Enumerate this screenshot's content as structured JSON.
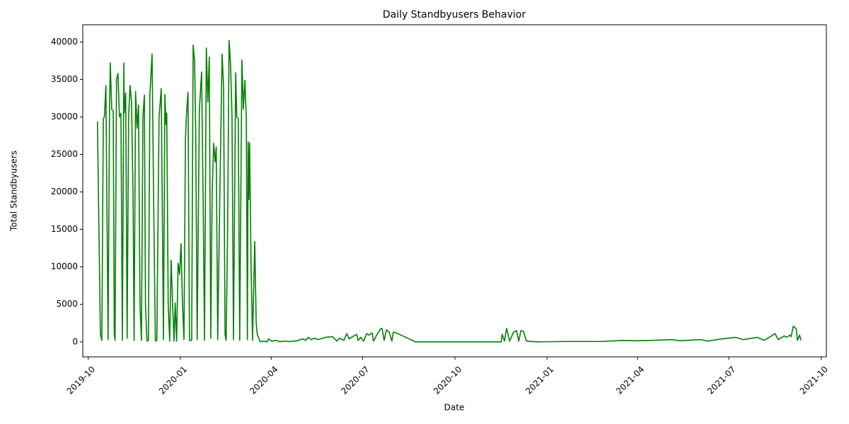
{
  "chart_data": {
    "type": "line",
    "title": "Daily Standbyusers Behavior",
    "x_label": "Date",
    "y_label": "Total Standbyusers",
    "x": [
      2019.774,
      2019.782,
      2019.786,
      2019.79,
      2019.793,
      2019.797,
      2019.803,
      2019.807,
      2019.809,
      2019.813,
      2019.817,
      2019.82,
      2019.822,
      2019.826,
      2019.83,
      2019.834,
      2019.838,
      2019.842,
      2019.846,
      2019.847,
      2019.851,
      2019.855,
      2019.859,
      2019.863,
      2019.867,
      2019.871,
      2019.874,
      2019.878,
      2019.882,
      2019.886,
      2019.89,
      2019.894,
      2019.898,
      2019.902,
      2019.905,
      2019.909,
      2019.913,
      2019.917,
      2019.923,
      2019.927,
      2019.932,
      2019.936,
      2019.942,
      2019.948,
      2019.954,
      2019.958,
      2019.961,
      2019.963,
      2019.967,
      2019.971,
      2019.975,
      2019.979,
      2019.983,
      2019.986,
      2019.99,
      2019.994,
      2019.998,
      2020.002,
      2020.006,
      2020.01,
      2020.014,
      2020.017,
      2020.021,
      2020.025,
      2020.031,
      2020.035,
      2020.039,
      2020.042,
      2020.046,
      2020.052,
      2020.058,
      2020.062,
      2020.066,
      2020.071,
      2020.075,
      2020.079,
      2020.083,
      2020.087,
      2020.091,
      2020.095,
      2020.098,
      2020.102,
      2020.108,
      2020.114,
      2020.118,
      2020.122,
      2020.125,
      2020.129,
      2020.133,
      2020.137,
      2020.141,
      2020.145,
      2020.151,
      2020.154,
      2020.158,
      2020.162,
      2020.168,
      2020.172,
      2020.176,
      2020.18,
      2020.183,
      2020.185,
      2020.187,
      2020.189,
      2020.193,
      2020.197,
      2020.203,
      2020.207,
      2020.21,
      2020.214,
      2020.218,
      2020.226,
      2020.237,
      2020.241,
      2020.249,
      2020.261,
      2020.272,
      2020.28,
      2020.299,
      2020.319,
      2020.334,
      2020.342,
      2020.349,
      2020.357,
      2020.367,
      2020.376,
      2020.396,
      2020.415,
      2020.427,
      2020.434,
      2020.446,
      2020.454,
      2020.461,
      2020.473,
      2020.481,
      2020.485,
      2020.492,
      2020.5,
      2020.508,
      2020.515,
      2020.523,
      2020.527,
      2020.539,
      2020.546,
      2020.55,
      2020.556,
      2020.562,
      2020.57,
      2020.577,
      2020.581,
      2020.589,
      2020.641,
      2020.875,
      2020.878,
      2020.884,
      2020.89,
      2020.898,
      2020.909,
      2020.917,
      2020.923,
      2020.929,
      2020.936,
      2020.944,
      2020.975,
      2021.052,
      2021.149,
      2021.207,
      2021.245,
      2021.284,
      2021.342,
      2021.361,
      2021.419,
      2021.438,
      2021.477,
      2021.515,
      2021.535,
      2021.573,
      2021.593,
      2021.622,
      2021.631,
      2021.647,
      2021.654,
      2021.662,
      2021.666,
      2021.672,
      2021.68,
      2021.683,
      2021.689,
      2021.693
    ],
    "series": [
      {
        "name": "Total Standbyusers",
        "color": "#008000",
        "values": [
          29400,
          1000,
          200,
          29800,
          30000,
          34200,
          300,
          31000,
          37200,
          31000,
          30800,
          1000,
          200,
          35000,
          35800,
          30000,
          30500,
          200,
          37200,
          30500,
          33200,
          500,
          30000,
          34200,
          32000,
          20000,
          200,
          33400,
          28500,
          31600,
          5000,
          200,
          30000,
          32900,
          5000,
          100,
          200,
          33000,
          38400,
          20000,
          100,
          200,
          30000,
          33800,
          300,
          33000,
          29000,
          30500,
          5000,
          100,
          10900,
          5000,
          100,
          5200,
          100,
          10500,
          9000,
          13100,
          5000,
          300,
          27000,
          30600,
          33300,
          200,
          200,
          39600,
          37500,
          28000,
          300,
          31000,
          36000,
          20000,
          200,
          39200,
          32000,
          38000,
          500,
          20000,
          26500,
          24000,
          26000,
          300,
          20000,
          38400,
          34000,
          1000,
          200,
          15000,
          40200,
          37000,
          30000,
          300,
          35900,
          30000,
          29800,
          200,
          37600,
          31000,
          34900,
          30000,
          300,
          26700,
          19000,
          26500,
          10000,
          200,
          13400,
          2500,
          1000,
          500,
          0,
          100,
          0,
          400,
          100,
          200,
          0,
          100,
          50,
          150,
          400,
          200,
          600,
          300,
          500,
          300,
          600,
          700,
          100,
          500,
          200,
          1100,
          400,
          800,
          1000,
          200,
          600,
          100,
          1100,
          900,
          1200,
          100,
          1200,
          1700,
          1800,
          200,
          1600,
          1300,
          100,
          1300,
          1200,
          0,
          0,
          1000,
          100,
          1800,
          100,
          1300,
          1500,
          100,
          1500,
          1400,
          100,
          0,
          50,
          50,
          200,
          150,
          200,
          300,
          150,
          300,
          100,
          400,
          600,
          300,
          600,
          200,
          1100,
          300,
          800,
          600,
          900,
          700,
          2100,
          1700,
          200,
          900,
          200
        ]
      }
    ],
    "xlim": [
      2019.734,
      2021.762
    ],
    "xticks": [
      {
        "value": 2019.749,
        "label": "2019-10"
      },
      {
        "value": 2020.0,
        "label": "2020-01"
      },
      {
        "value": 2020.248,
        "label": "2020-04"
      },
      {
        "value": 2020.497,
        "label": "2020-07"
      },
      {
        "value": 2020.749,
        "label": "2020-10"
      },
      {
        "value": 2021.0,
        "label": "2021-01"
      },
      {
        "value": 2021.247,
        "label": "2021-04"
      },
      {
        "value": 2021.496,
        "label": "2021-07"
      },
      {
        "value": 2021.748,
        "label": "2021-10"
      }
    ],
    "ylim": [
      -2000,
      42300
    ],
    "yticks": [
      0,
      5000,
      10000,
      15000,
      20000,
      25000,
      30000,
      35000,
      40000
    ],
    "grid": false
  }
}
